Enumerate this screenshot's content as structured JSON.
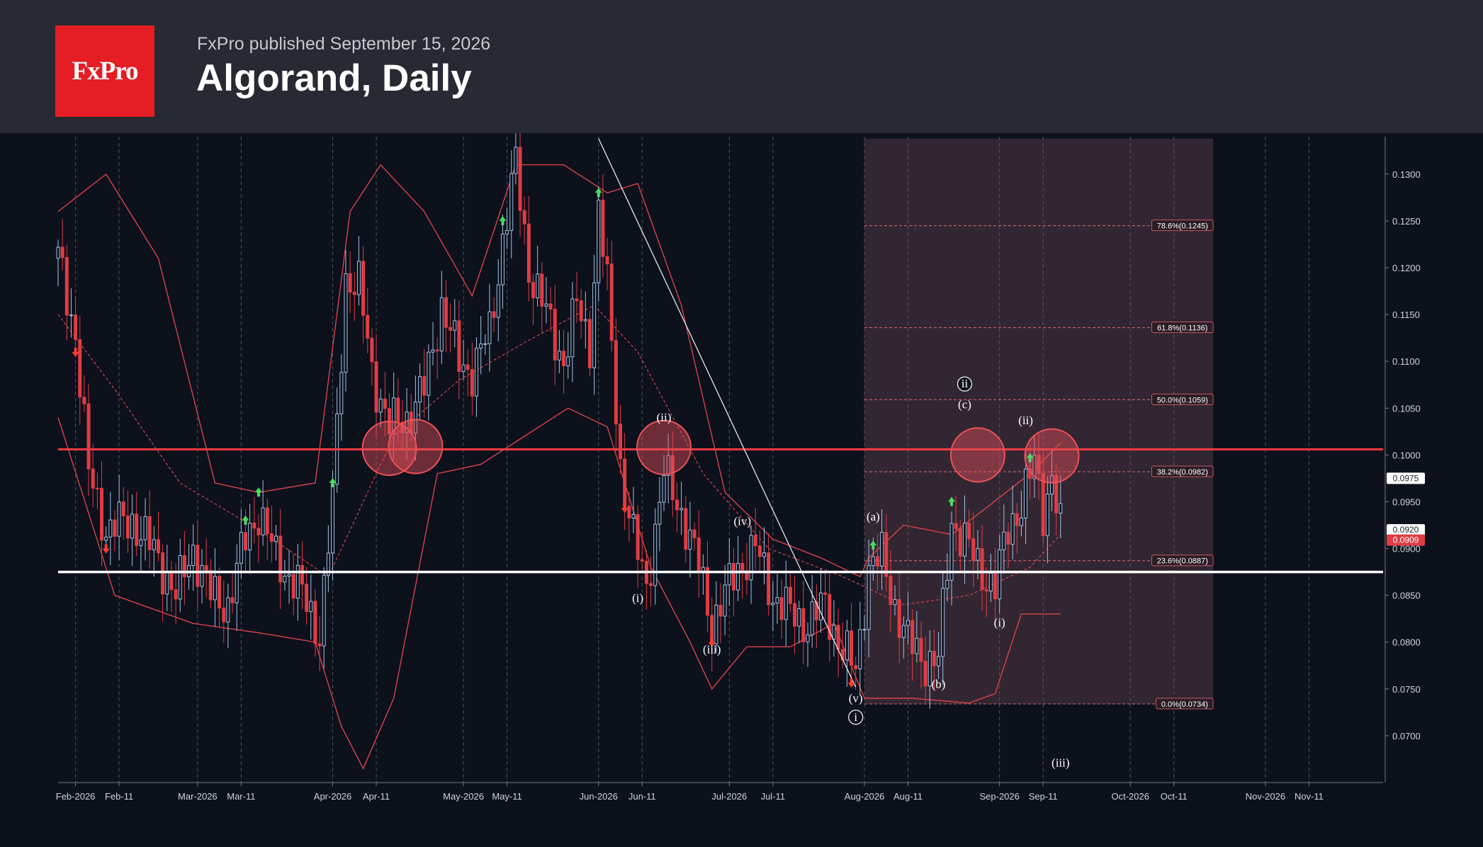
{
  "header": {
    "logo_text": "FxPro",
    "published": "FxPro published September 15, 2026",
    "title": "Algorand, Daily"
  },
  "colors": {
    "background": "#0c111c",
    "header": "#272933",
    "brand": "#e51d24",
    "bull": "#9fc3e6",
    "bear": "#e03c43",
    "band": "#d9424a",
    "resistance": "#ee3b42",
    "support": "#ffffff",
    "zone": "#3a2a36"
  },
  "chart_data": {
    "type": "candlestick",
    "x_axis": {
      "start": "2026-01-28",
      "end": "2026-11-28",
      "tick_labels": [
        {
          "date": "2026-02-01",
          "label": "Feb-2026",
          "major": true
        },
        {
          "date": "2026-02-11",
          "label": "Feb-11",
          "major": false
        },
        {
          "date": "2026-03-01",
          "label": "Mar-2026",
          "major": true
        },
        {
          "date": "2026-03-11",
          "label": "Mar-11",
          "major": false
        },
        {
          "date": "2026-04-01",
          "label": "Apr-2026",
          "major": true
        },
        {
          "date": "2026-04-11",
          "label": "Apr-11",
          "major": false
        },
        {
          "date": "2026-05-01",
          "label": "May-2026",
          "major": true
        },
        {
          "date": "2026-05-11",
          "label": "May-11",
          "major": false
        },
        {
          "date": "2026-06-01",
          "label": "Jun-2026",
          "major": true
        },
        {
          "date": "2026-06-11",
          "label": "Jun-11",
          "major": false
        },
        {
          "date": "2026-07-01",
          "label": "Jul-2026",
          "major": true
        },
        {
          "date": "2026-07-11",
          "label": "Jul-11",
          "major": false
        },
        {
          "date": "2026-08-01",
          "label": "Aug-2026",
          "major": true
        },
        {
          "date": "2026-08-11",
          "label": "Aug-11",
          "major": false
        },
        {
          "date": "2026-09-01",
          "label": "Sep-2026",
          "major": true
        },
        {
          "date": "2026-09-11",
          "label": "Sep-11",
          "major": false
        },
        {
          "date": "2026-10-01",
          "label": "Oct-2026",
          "major": true
        },
        {
          "date": "2026-10-11",
          "label": "Oct-11",
          "major": false
        },
        {
          "date": "2026-11-01",
          "label": "Nov-2026",
          "major": true
        },
        {
          "date": "2026-11-11",
          "label": "Nov-11",
          "major": false
        }
      ]
    },
    "y_axis": {
      "min": 0.065,
      "max": 0.134,
      "tick_labels": [
        "0.0700",
        "0.0750",
        "0.0800",
        "0.0850",
        "0.0900",
        "0.0950",
        "0.1000",
        "0.1050",
        "0.1100",
        "0.1150",
        "0.1200",
        "0.1250",
        "0.1300"
      ]
    },
    "price_path": [
      [
        "2026-01-28",
        0.121
      ],
      [
        "2026-02-01",
        0.113
      ],
      [
        "2026-02-04",
        0.098
      ],
      [
        "2026-02-08",
        0.092
      ],
      [
        "2026-02-14",
        0.093
      ],
      [
        "2026-02-20",
        0.089
      ],
      [
        "2026-02-24",
        0.085
      ],
      [
        "2026-02-28",
        0.09
      ],
      [
        "2026-03-04",
        0.085
      ],
      [
        "2026-03-08",
        0.084
      ],
      [
        "2026-03-12",
        0.091
      ],
      [
        "2026-03-15",
        0.094
      ],
      [
        "2026-03-19",
        0.089
      ],
      [
        "2026-03-24",
        0.086
      ],
      [
        "2026-03-29",
        0.081
      ],
      [
        "2026-04-01",
        0.095
      ],
      [
        "2026-04-04",
        0.119
      ],
      [
        "2026-04-07",
        0.118
      ],
      [
        "2026-04-10",
        0.109
      ],
      [
        "2026-04-14",
        0.103
      ],
      [
        "2026-04-18",
        0.104
      ],
      [
        "2026-04-22",
        0.107
      ],
      [
        "2026-04-26",
        0.116
      ],
      [
        "2026-04-30",
        0.11
      ],
      [
        "2026-05-03",
        0.109
      ],
      [
        "2026-05-07",
        0.113
      ],
      [
        "2026-05-10",
        0.123
      ],
      [
        "2026-05-13",
        0.131
      ],
      [
        "2026-05-16",
        0.12
      ],
      [
        "2026-05-20",
        0.115
      ],
      [
        "2026-05-24",
        0.11
      ],
      [
        "2026-05-27",
        0.116
      ],
      [
        "2026-05-30",
        0.112
      ],
      [
        "2026-06-01",
        0.126
      ],
      [
        "2026-06-03",
        0.118
      ],
      [
        "2026-06-06",
        0.099
      ],
      [
        "2026-06-09",
        0.091
      ],
      [
        "2026-06-12",
        0.086
      ],
      [
        "2026-06-16",
        0.098
      ],
      [
        "2026-06-20",
        0.094
      ],
      [
        "2026-06-24",
        0.088
      ],
      [
        "2026-06-27",
        0.082
      ],
      [
        "2026-06-30",
        0.085
      ],
      [
        "2026-07-03",
        0.088
      ],
      [
        "2026-07-07",
        0.09
      ],
      [
        "2026-07-11",
        0.085
      ],
      [
        "2026-07-15",
        0.083
      ],
      [
        "2026-07-19",
        0.082
      ],
      [
        "2026-07-23",
        0.084
      ],
      [
        "2026-07-27",
        0.079
      ],
      [
        "2026-07-30",
        0.077
      ],
      [
        "2026-08-02",
        0.088
      ],
      [
        "2026-08-05",
        0.089
      ],
      [
        "2026-08-08",
        0.084
      ],
      [
        "2026-08-11",
        0.08
      ],
      [
        "2026-08-15",
        0.078
      ],
      [
        "2026-08-18",
        0.078
      ],
      [
        "2026-08-21",
        0.093
      ],
      [
        "2026-08-24",
        0.091
      ],
      [
        "2026-08-27",
        0.088
      ],
      [
        "2026-08-31",
        0.086
      ],
      [
        "2026-09-03",
        0.092
      ],
      [
        "2026-09-06",
        0.095
      ],
      [
        "2026-09-09",
        0.099
      ],
      [
        "2026-09-11",
        0.094
      ],
      [
        "2026-09-13",
        0.098
      ],
      [
        "2026-09-15",
        0.092
      ]
    ],
    "bollinger_upper": [
      [
        "2026-01-28",
        0.126
      ],
      [
        "2026-02-08",
        0.13
      ],
      [
        "2026-02-20",
        0.121
      ],
      [
        "2026-03-05",
        0.097
      ],
      [
        "2026-03-15",
        0.096
      ],
      [
        "2026-03-28",
        0.097
      ],
      [
        "2026-04-05",
        0.126
      ],
      [
        "2026-04-12",
        0.131
      ],
      [
        "2026-04-22",
        0.126
      ],
      [
        "2026-05-03",
        0.117
      ],
      [
        "2026-05-13",
        0.131
      ],
      [
        "2026-05-24",
        0.131
      ],
      [
        "2026-06-03",
        0.128
      ],
      [
        "2026-06-10",
        0.129
      ],
      [
        "2026-06-20",
        0.116
      ],
      [
        "2026-06-30",
        0.096
      ],
      [
        "2026-07-11",
        0.091
      ],
      [
        "2026-07-22",
        0.089
      ],
      [
        "2026-07-31",
        0.087
      ],
      [
        "2026-08-02",
        0.089
      ],
      [
        "2026-08-10",
        0.0925
      ],
      [
        "2026-08-21",
        0.0915
      ],
      [
        "2026-08-28",
        0.094
      ],
      [
        "2026-09-08",
        0.098
      ],
      [
        "2026-09-15",
        0.1013
      ]
    ],
    "bollinger_middle": [
      [
        "2026-01-28",
        0.115
      ],
      [
        "2026-02-10",
        0.107
      ],
      [
        "2026-02-25",
        0.097
      ],
      [
        "2026-03-15",
        0.092
      ],
      [
        "2026-03-31",
        0.087
      ],
      [
        "2026-04-15",
        0.102
      ],
      [
        "2026-04-30",
        0.108
      ],
      [
        "2026-05-15",
        0.112
      ],
      [
        "2026-05-31",
        0.116
      ],
      [
        "2026-06-10",
        0.111
      ],
      [
        "2026-06-25",
        0.098
      ],
      [
        "2026-07-10",
        0.09
      ],
      [
        "2026-07-27",
        0.087
      ],
      [
        "2026-08-10",
        0.084
      ],
      [
        "2026-08-25",
        0.085
      ],
      [
        "2026-09-08",
        0.088
      ],
      [
        "2026-09-15",
        0.0915
      ]
    ],
    "bollinger_lower": [
      [
        "2026-01-28",
        0.104
      ],
      [
        "2026-02-10",
        0.085
      ],
      [
        "2026-02-28",
        0.082
      ],
      [
        "2026-03-15",
        0.081
      ],
      [
        "2026-03-28",
        0.08
      ],
      [
        "2026-04-03",
        0.071
      ],
      [
        "2026-04-08",
        0.0665
      ],
      [
        "2026-04-15",
        0.074
      ],
      [
        "2026-04-25",
        0.098
      ],
      [
        "2026-05-05",
        0.099
      ],
      [
        "2026-05-15",
        0.102
      ],
      [
        "2026-05-25",
        0.105
      ],
      [
        "2026-06-03",
        0.103
      ],
      [
        "2026-06-13",
        0.088
      ],
      [
        "2026-06-22",
        0.08
      ],
      [
        "2026-06-27",
        0.075
      ],
      [
        "2026-07-05",
        0.0795
      ],
      [
        "2026-07-15",
        0.0795
      ],
      [
        "2026-07-25",
        0.082
      ],
      [
        "2026-08-01",
        0.074
      ],
      [
        "2026-08-12",
        0.074
      ],
      [
        "2026-08-25",
        0.0735
      ],
      [
        "2026-08-31",
        0.0745
      ],
      [
        "2026-09-06",
        0.083
      ],
      [
        "2026-09-15",
        0.083
      ]
    ],
    "resistance_level": 0.1006,
    "support_level": 0.0875,
    "trendline": {
      "start": [
        "2026-06-01",
        0.1338
      ],
      "end": [
        "2026-07-30",
        0.0752
      ]
    },
    "fibonacci": {
      "zone": {
        "start": "2026-08-01",
        "end": "2026-10-20",
        "top": 0.1338,
        "bottom": 0.0734
      },
      "label_date": "2026-10-20",
      "levels": [
        {
          "price": 0.1245,
          "label": "78.6%(0.1245)"
        },
        {
          "price": 0.1136,
          "label": "61.8%(0.1136)"
        },
        {
          "price": 0.1059,
          "label": "50.0%(0.1059)"
        },
        {
          "price": 0.0982,
          "label": "38.2%(0.0982)"
        },
        {
          "price": 0.0887,
          "label": "23.6%(0.0887)"
        },
        {
          "price": 0.0734,
          "label": "0.0%(0.0734)"
        }
      ]
    },
    "highlight_circles": [
      {
        "date": "2026-04-14",
        "price": 0.1007
      },
      {
        "date": "2026-04-20",
        "price": 0.1009
      },
      {
        "date": "2026-06-16",
        "price": 0.1008
      },
      {
        "date": "2026-08-27",
        "price": 0.1
      },
      {
        "date": "2026-09-13",
        "price": 0.0999
      }
    ],
    "wave_labels": [
      {
        "text": "(ii)",
        "date": "2026-06-16",
        "price": 0.1036
      },
      {
        "text": "(i)",
        "date": "2026-06-10",
        "price": 0.0843
      },
      {
        "text": "(iii)",
        "date": "2026-06-27",
        "price": 0.0788
      },
      {
        "text": "(iv)",
        "date": "2026-07-04",
        "price": 0.0925
      },
      {
        "text": "(v)",
        "date": "2026-07-30",
        "price": 0.0736
      },
      {
        "text": "i",
        "date": "2026-07-30",
        "price": 0.0716,
        "circled": true
      },
      {
        "text": "(a)",
        "date": "2026-08-03",
        "price": 0.093
      },
      {
        "text": "(b)",
        "date": "2026-08-18",
        "price": 0.0751
      },
      {
        "text": "(c)",
        "date": "2026-08-24",
        "price": 0.105
      },
      {
        "text": "ii",
        "date": "2026-08-24",
        "price": 0.1072,
        "circled": true
      },
      {
        "text": "(i)",
        "date": "2026-09-01",
        "price": 0.0817
      },
      {
        "text": "(ii)",
        "date": "2026-09-07",
        "price": 0.1033
      },
      {
        "text": "(iii)",
        "date": "2026-09-15",
        "price": 0.0667
      }
    ],
    "buy_signals": [
      "2026-04-01",
      "2026-03-12",
      "2026-03-15",
      "2026-05-10",
      "2026-06-01",
      "2026-08-03",
      "2026-08-21",
      "2026-09-08"
    ],
    "sell_signals": [
      "2026-02-01",
      "2026-02-08",
      "2026-06-07",
      "2026-06-27",
      "2026-07-29"
    ],
    "price_tags": [
      {
        "price": 0.0975,
        "label": "0.0975",
        "style": "white"
      },
      {
        "price": 0.092,
        "label": "0.0920",
        "style": "white"
      },
      {
        "price": 0.0909,
        "label": "0.0909",
        "style": "red"
      }
    ]
  }
}
